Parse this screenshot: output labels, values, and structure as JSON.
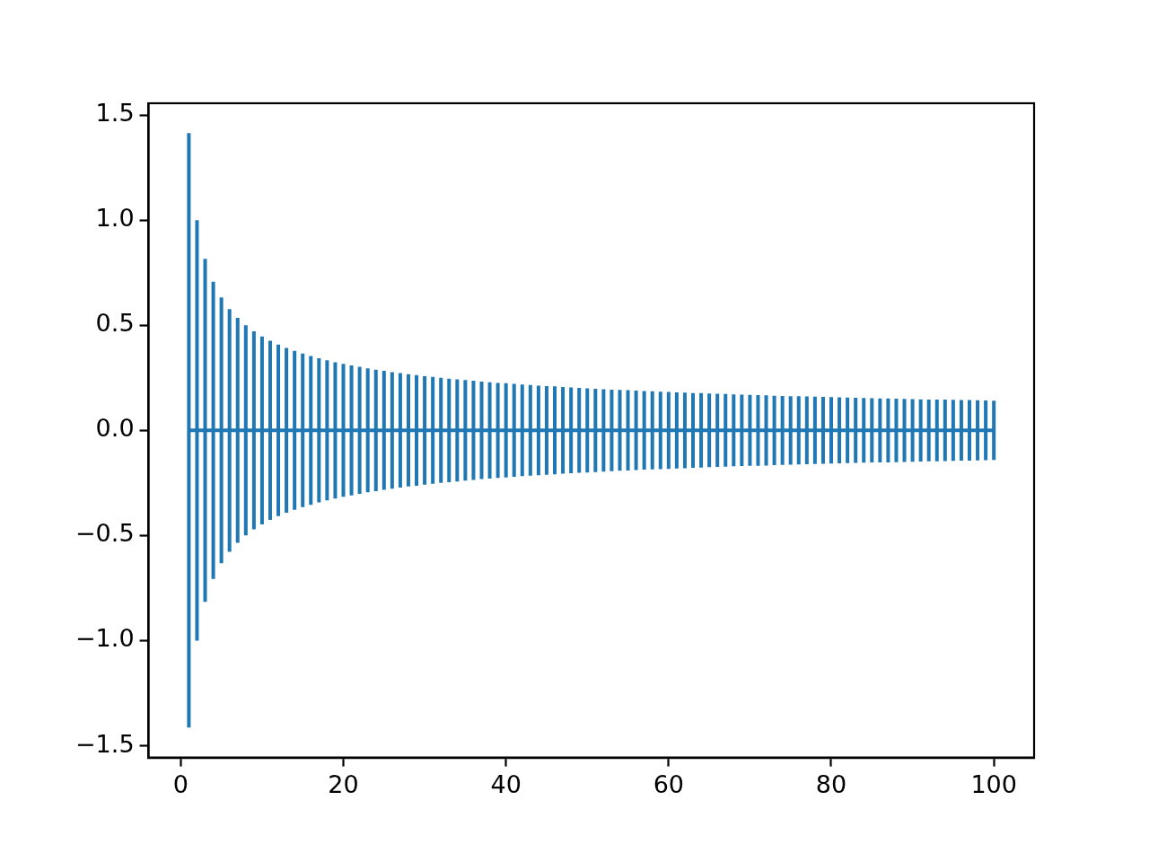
{
  "chart_data": {
    "type": "errorbar",
    "x": [
      1,
      2,
      3,
      4,
      5,
      6,
      7,
      8,
      9,
      10,
      11,
      12,
      13,
      14,
      15,
      16,
      17,
      18,
      19,
      20,
      21,
      22,
      23,
      24,
      25,
      26,
      27,
      28,
      29,
      30,
      31,
      32,
      33,
      34,
      35,
      36,
      37,
      38,
      39,
      40,
      41,
      42,
      43,
      44,
      45,
      46,
      47,
      48,
      49,
      50,
      51,
      52,
      53,
      54,
      55,
      56,
      57,
      58,
      59,
      60,
      61,
      62,
      63,
      64,
      65,
      66,
      67,
      68,
      69,
      70,
      71,
      72,
      73,
      74,
      75,
      76,
      77,
      78,
      79,
      80,
      81,
      82,
      83,
      84,
      85,
      86,
      87,
      88,
      89,
      90,
      91,
      92,
      93,
      94,
      95,
      96,
      97,
      98,
      99,
      100
    ],
    "values": [
      0,
      0,
      0,
      0,
      0,
      0,
      0,
      0,
      0,
      0,
      0,
      0,
      0,
      0,
      0,
      0,
      0,
      0,
      0,
      0,
      0,
      0,
      0,
      0,
      0,
      0,
      0,
      0,
      0,
      0,
      0,
      0,
      0,
      0,
      0,
      0,
      0,
      0,
      0,
      0,
      0,
      0,
      0,
      0,
      0,
      0,
      0,
      0,
      0,
      0,
      0,
      0,
      0,
      0,
      0,
      0,
      0,
      0,
      0,
      0,
      0,
      0,
      0,
      0,
      0,
      0,
      0,
      0,
      0,
      0,
      0,
      0,
      0,
      0,
      0,
      0,
      0,
      0,
      0,
      0,
      0,
      0,
      0,
      0,
      0,
      0,
      0,
      0,
      0,
      0,
      0,
      0,
      0,
      0,
      0,
      0,
      0,
      0,
      0,
      0
    ],
    "errors": [
      1.414,
      1.0,
      0.816,
      0.707,
      0.632,
      0.577,
      0.535,
      0.5,
      0.471,
      0.447,
      0.426,
      0.408,
      0.392,
      0.378,
      0.365,
      0.354,
      0.343,
      0.333,
      0.324,
      0.316,
      0.309,
      0.302,
      0.295,
      0.289,
      0.283,
      0.277,
      0.272,
      0.267,
      0.263,
      0.258,
      0.254,
      0.25,
      0.246,
      0.243,
      0.239,
      0.236,
      0.232,
      0.229,
      0.226,
      0.224,
      0.221,
      0.218,
      0.216,
      0.213,
      0.211,
      0.209,
      0.206,
      0.204,
      0.202,
      0.2,
      0.198,
      0.196,
      0.194,
      0.192,
      0.191,
      0.189,
      0.187,
      0.186,
      0.184,
      0.183,
      0.181,
      0.18,
      0.178,
      0.177,
      0.175,
      0.174,
      0.173,
      0.171,
      0.17,
      0.169,
      0.168,
      0.167,
      0.165,
      0.164,
      0.163,
      0.162,
      0.161,
      0.16,
      0.159,
      0.158,
      0.157,
      0.156,
      0.155,
      0.154,
      0.153,
      0.152,
      0.152,
      0.151,
      0.15,
      0.149,
      0.148,
      0.147,
      0.147,
      0.146,
      0.145,
      0.144,
      0.144,
      0.143,
      0.142,
      0.141
    ],
    "color": "#1f77b4",
    "xlim": [
      -3.95,
      104.95
    ],
    "xticks": [
      0,
      20,
      40,
      60,
      80,
      100
    ],
    "ylim": [
      -1.556,
      1.556
    ],
    "yticks": [
      {
        "value": -1.5,
        "label": "−1.5"
      },
      {
        "value": -1,
        "label": "−1.0"
      },
      {
        "value": -0.5,
        "label": "−0.5"
      },
      {
        "value": 0,
        "label": "0.0"
      },
      {
        "value": 0.5,
        "label": "0.5"
      },
      {
        "value": 1,
        "label": "1.0"
      },
      {
        "value": 1.5,
        "label": "1.5"
      }
    ],
    "grid": false
  }
}
